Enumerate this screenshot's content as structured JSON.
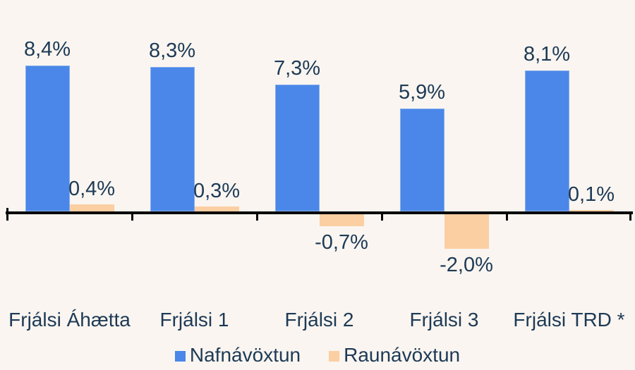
{
  "chart_data": {
    "type": "bar",
    "categories": [
      "Frjálsi Áhætta",
      "Frjálsi 1",
      "Frjálsi 2",
      "Frjálsi 3",
      "Frjálsi TRD *"
    ],
    "series": [
      {
        "name": "Nafnávöxtun",
        "values": [
          8.4,
          8.3,
          7.3,
          5.9,
          8.1
        ],
        "labels": [
          "8,4%",
          "8,3%",
          "7,3%",
          "5,9%",
          "8,1%"
        ],
        "color": "#4a87e8"
      },
      {
        "name": "Raunávöxtun",
        "values": [
          0.4,
          0.3,
          -0.7,
          -2.0,
          0.1
        ],
        "labels": [
          "0,4%",
          "0,3%",
          "-0,7%",
          "-2,0%",
          "0,1%"
        ],
        "color": "#fbcfa2"
      }
    ],
    "title": "",
    "xlabel": "",
    "ylabel": "",
    "ylim": [
      -2.5,
      9
    ],
    "grid": false,
    "y_axis_visible": false,
    "legend_position": "bottom",
    "value_label_format": "comma-decimal-percent"
  },
  "colors": {
    "background": "#faf5f0",
    "text": "#1d3a56",
    "axis": "#060606",
    "series_nafnavoxtun": "#4a87e8",
    "series_raunavoxtun": "#fbcfa2"
  }
}
